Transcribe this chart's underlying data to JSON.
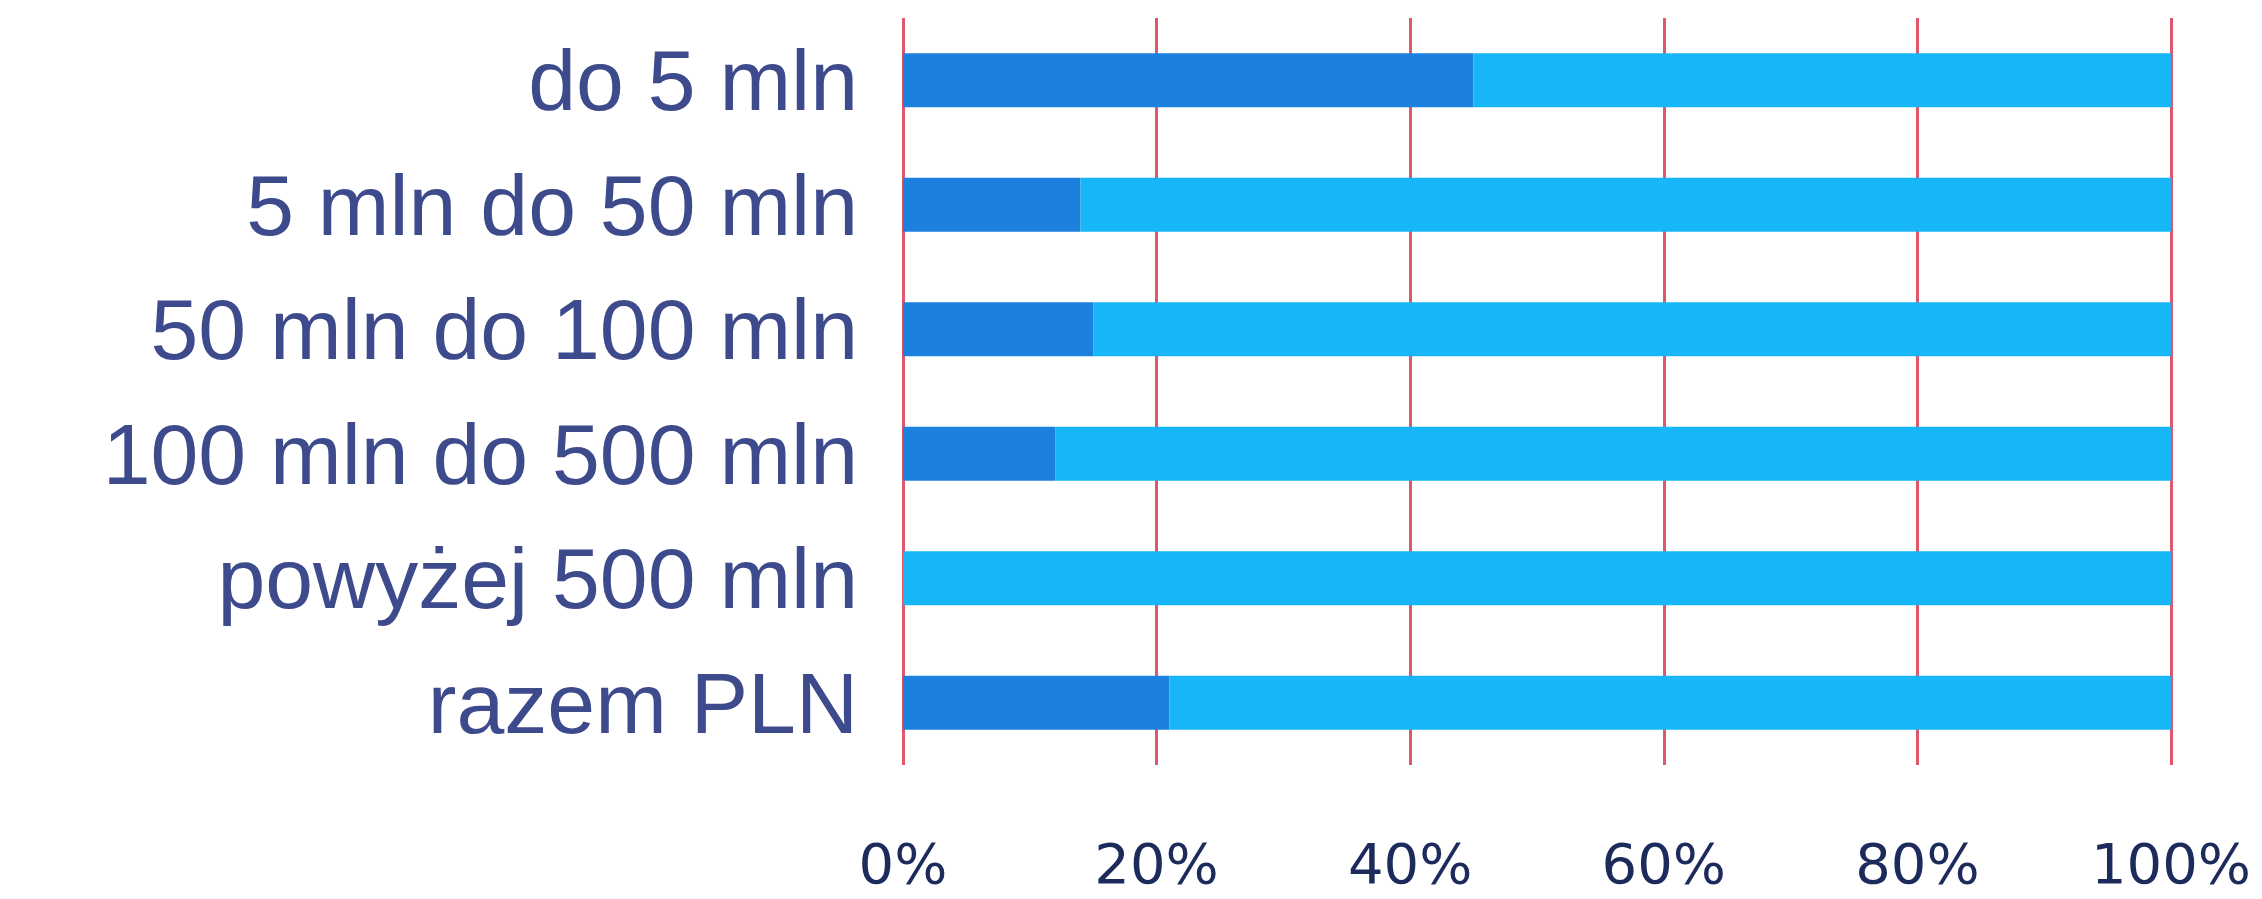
{
  "chart_data": {
    "type": "bar",
    "orientation": "horizontal",
    "stacked": true,
    "categories": [
      "do 5 mln",
      "5 mln do 50 mln",
      "50 mln do 100 mln",
      "100 mln do 500 mln",
      "powyżej 500 mln",
      "razem PLN"
    ],
    "series": [
      {
        "color": "#1b80de",
        "values": [
          45,
          14,
          15,
          12,
          0,
          21
        ]
      },
      {
        "color": "#17b6f6",
        "values": [
          55,
          86,
          85,
          88,
          100,
          79
        ]
      }
    ],
    "xlim": [
      0,
      100
    ],
    "xticks": [
      {
        "value": 0,
        "label": "0%"
      },
      {
        "value": 20,
        "label": "20%"
      },
      {
        "value": 40,
        "label": "40%"
      },
      {
        "value": 60,
        "label": "60%"
      },
      {
        "value": 80,
        "label": "80%"
      },
      {
        "value": 100,
        "label": "100%"
      }
    ],
    "grid": "x"
  }
}
